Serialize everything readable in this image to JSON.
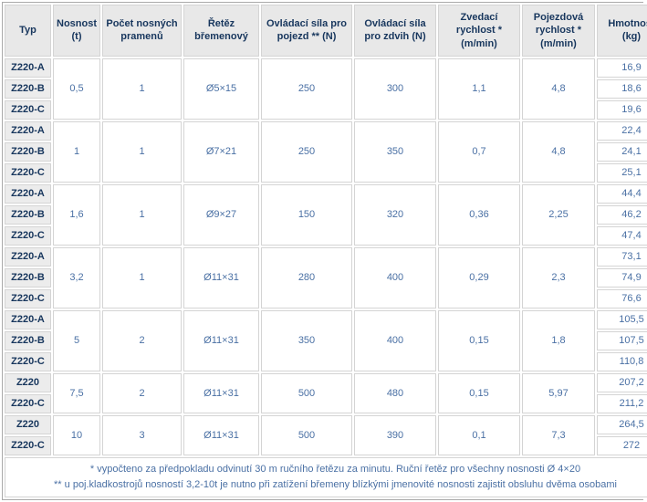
{
  "table": {
    "columns": [
      "Typ",
      "Nosnost (t)",
      "Počet nosných pramenů",
      "Řetěz břemenový",
      "Ovládací síla pro pojezd ** (N)",
      "Ovládací síla pro zdvih (N)",
      "Zvedací rychlost * (m/min)",
      "Pojezdová rychlost * (m/min)",
      "Hmotnost (kg)"
    ],
    "groups": [
      {
        "types": [
          "Z220-A",
          "Z220-B",
          "Z220-C"
        ],
        "nosnost": "0,5",
        "prameny": "1",
        "retez": "Ø5×15",
        "sila_pojezd": "250",
        "sila_zdvih": "300",
        "zvedaci": "1,1",
        "pojezdova": "4,8",
        "hmotnosti": [
          "16,9",
          "18,6",
          "19,6"
        ]
      },
      {
        "types": [
          "Z220-A",
          "Z220-B",
          "Z220-C"
        ],
        "nosnost": "1",
        "prameny": "1",
        "retez": "Ø7×21",
        "sila_pojezd": "250",
        "sila_zdvih": "350",
        "zvedaci": "0,7",
        "pojezdova": "4,8",
        "hmotnosti": [
          "22,4",
          "24,1",
          "25,1"
        ]
      },
      {
        "types": [
          "Z220-A",
          "Z220-B",
          "Z220-C"
        ],
        "nosnost": "1,6",
        "prameny": "1",
        "retez": "Ø9×27",
        "sila_pojezd": "150",
        "sila_zdvih": "320",
        "zvedaci": "0,36",
        "pojezdova": "2,25",
        "hmotnosti": [
          "44,4",
          "46,2",
          "47,4"
        ]
      },
      {
        "types": [
          "Z220-A",
          "Z220-B",
          "Z220-C"
        ],
        "nosnost": "3,2",
        "prameny": "1",
        "retez": "Ø11×31",
        "sila_pojezd": "280",
        "sila_zdvih": "400",
        "zvedaci": "0,29",
        "pojezdova": "2,3",
        "hmotnosti": [
          "73,1",
          "74,9",
          "76,6"
        ]
      },
      {
        "types": [
          "Z220-A",
          "Z220-B",
          "Z220-C"
        ],
        "nosnost": "5",
        "prameny": "2",
        "retez": "Ø11×31",
        "sila_pojezd": "350",
        "sila_zdvih": "400",
        "zvedaci": "0,15",
        "pojezdova": "1,8",
        "hmotnosti": [
          "105,5",
          "107,5",
          "110,8"
        ]
      },
      {
        "types": [
          "Z220",
          "Z220-C"
        ],
        "nosnost": "7,5",
        "prameny": "2",
        "retez": "Ø11×31",
        "sila_pojezd": "500",
        "sila_zdvih": "480",
        "zvedaci": "0,15",
        "pojezdova": "5,97",
        "hmotnosti": [
          "207,2",
          "211,2"
        ]
      },
      {
        "types": [
          "Z220",
          "Z220-C"
        ],
        "nosnost": "10",
        "prameny": "3",
        "retez": "Ø11×31",
        "sila_pojezd": "500",
        "sila_zdvih": "390",
        "zvedaci": "0,1",
        "pojezdova": "7,3",
        "hmotnosti": [
          "264,5",
          "272"
        ]
      }
    ],
    "footnotes": [
      "* vypočteno za předpokladu odvinutí 30 m ručního řetězu za minutu. Ruční řetěz pro všechny nosnosti Ø 4×20",
      "** u poj.kladkostrojů nosností 3,2-10t je nutno při zatížení břemeny blízkými jmenovité nosnosti zajistit obsluhu dvěma osobami"
    ]
  }
}
